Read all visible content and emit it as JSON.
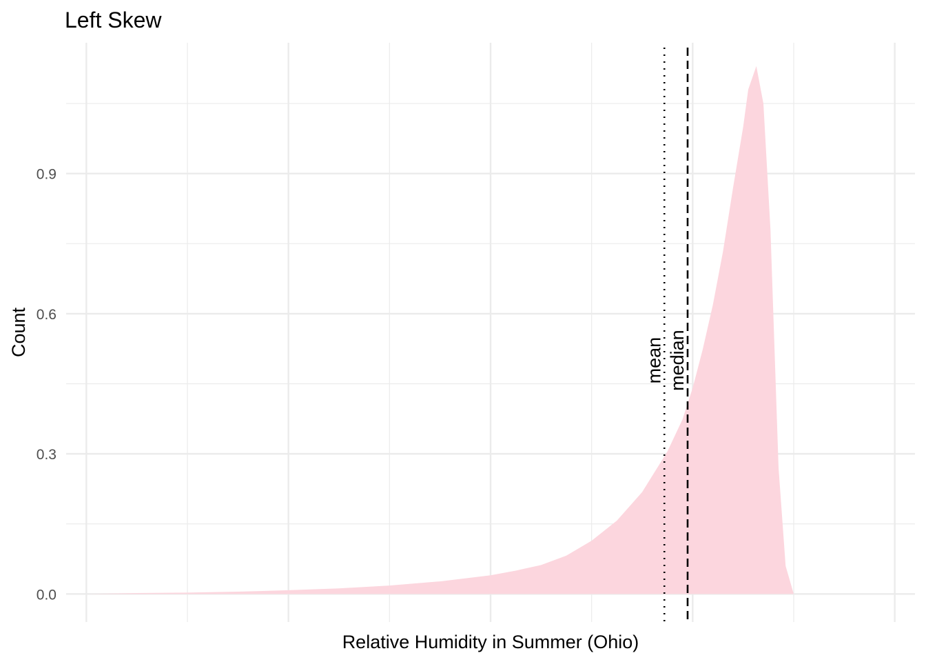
{
  "chart_data": {
    "type": "area",
    "title": "Left Skew",
    "xlabel": "Relative Humidity in Summer (Ohio)",
    "ylabel": "Count",
    "xlim": [
      -4.2,
      4.2
    ],
    "ylim": [
      -0.06,
      1.18
    ],
    "x_gridlines": [
      -4,
      -3,
      -2,
      -1,
      0,
      1,
      2,
      3,
      4
    ],
    "y_ticks": [
      0.0,
      0.3,
      0.6,
      0.9
    ],
    "y_tick_labels": [
      "0.0",
      "0.3",
      "0.6",
      "0.9"
    ],
    "y_minor_ticks": [
      0.15,
      0.45,
      0.75,
      1.05
    ],
    "grid": true,
    "fill_color": "#fcd6de",
    "series": [
      {
        "x": [
          -4.0,
          -3.5,
          -3.0,
          -2.5,
          -2.0,
          -1.5,
          -1.0,
          -0.5,
          0.0,
          0.25,
          0.5,
          0.75,
          1.0,
          1.25,
          1.5,
          1.75,
          1.9,
          2.0,
          2.1,
          2.2,
          2.3,
          2.4,
          2.5,
          2.55,
          2.63,
          2.7,
          2.77,
          2.85,
          2.92,
          3.0
        ],
        "y": [
          0.0,
          0.002,
          0.003,
          0.005,
          0.008,
          0.012,
          0.018,
          0.027,
          0.04,
          0.05,
          0.062,
          0.082,
          0.114,
          0.157,
          0.218,
          0.305,
          0.374,
          0.441,
          0.524,
          0.619,
          0.733,
          0.87,
          1.0,
          1.08,
          1.13,
          1.05,
          0.78,
          0.27,
          0.06,
          0.0
        ]
      }
    ],
    "vlines": [
      {
        "label": "mean",
        "x": 1.72,
        "linestyle": "dotted"
      },
      {
        "label": "median",
        "x": 1.95,
        "linestyle": "dashed"
      }
    ]
  }
}
